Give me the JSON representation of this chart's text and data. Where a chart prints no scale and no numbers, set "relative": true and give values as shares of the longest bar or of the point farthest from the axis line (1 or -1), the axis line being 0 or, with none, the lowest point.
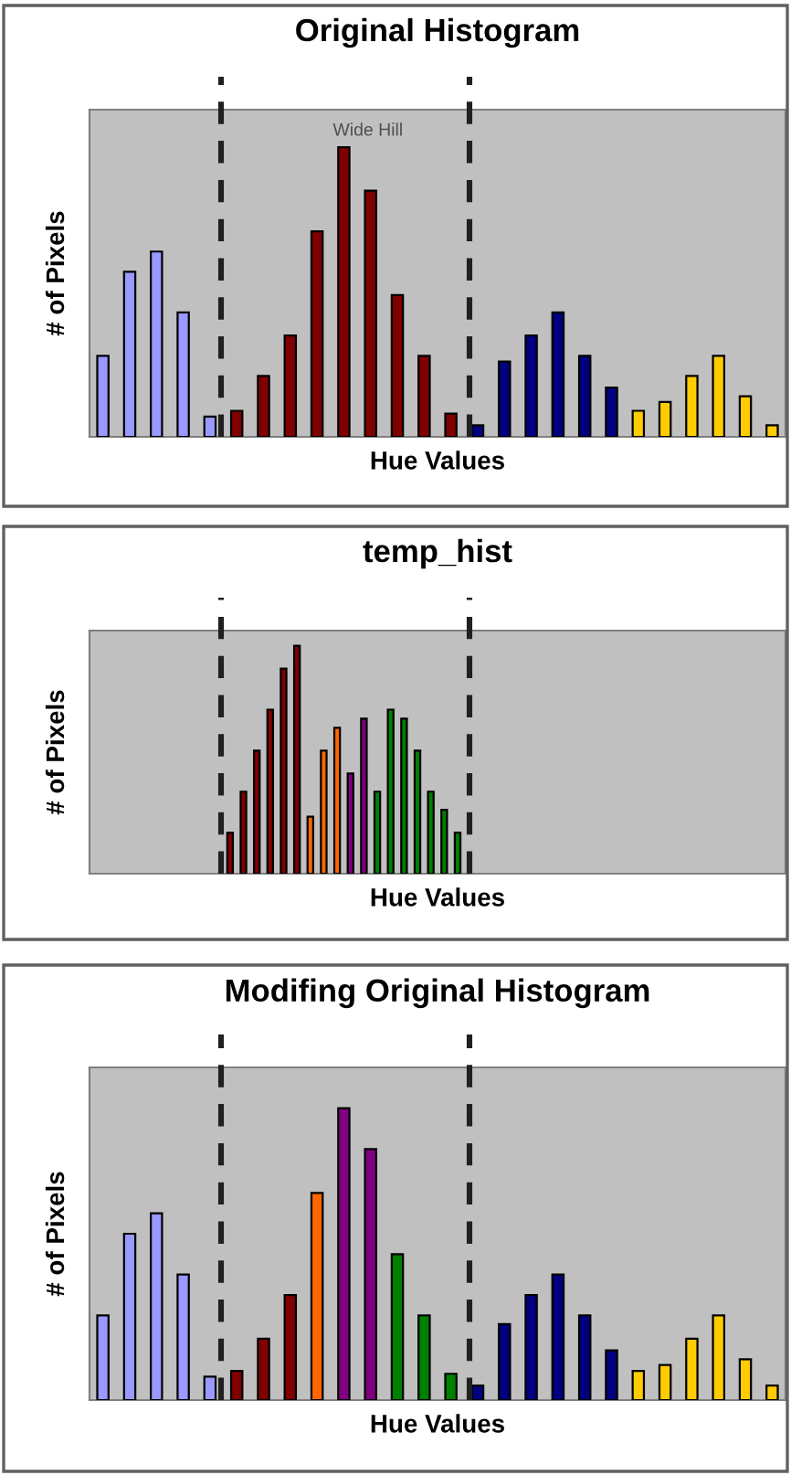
{
  "chart_data": [
    {
      "type": "bar",
      "title": "Original Histogram",
      "xlabel": "Hue Values",
      "ylabel": "# of Pixels",
      "relative": true,
      "categories": [
        null,
        null,
        null,
        null,
        null,
        null,
        null,
        null,
        null,
        null,
        null,
        null,
        null,
        null,
        null,
        null,
        null,
        null,
        null,
        null,
        null,
        null,
        null,
        null,
        null,
        null
      ],
      "values": [
        0.28,
        0.57,
        0.64,
        0.43,
        0.07,
        0.09,
        0.21,
        0.35,
        0.71,
        1.0,
        0.85,
        0.49,
        0.28,
        0.08,
        0.04,
        0.26,
        0.35,
        0.43,
        0.28,
        0.17,
        0.09,
        0.12,
        0.21,
        0.28,
        0.14,
        0.04
      ],
      "colors": [
        "#9999ff",
        "#9999ff",
        "#9999ff",
        "#9999ff",
        "#9999ff",
        "#800000",
        "#800000",
        "#800000",
        "#800000",
        "#800000",
        "#800000",
        "#800000",
        "#800000",
        "#800000",
        "#000080",
        "#000080",
        "#000080",
        "#000080",
        "#000080",
        "#000080",
        "#ffcc00",
        "#ffcc00",
        "#ffcc00",
        "#ffcc00",
        "#ffcc00",
        "#ffcc00"
      ],
      "annotations": [
        "Wide Hill"
      ]
    },
    {
      "type": "bar",
      "title": "temp_hist",
      "xlabel": "Hue Values",
      "ylabel": "# of Pixels",
      "relative": true,
      "categories": [
        null,
        null,
        null,
        null,
        null,
        null,
        null,
        null,
        null,
        null,
        null,
        null,
        null,
        null,
        null,
        null,
        null,
        null
      ],
      "values": [
        0.18,
        0.36,
        0.54,
        0.72,
        0.9,
        1.0,
        0.25,
        0.54,
        0.64,
        0.44,
        0.68,
        0.36,
        0.72,
        0.68,
        0.54,
        0.36,
        0.28,
        0.18
      ],
      "colors": [
        "#800000",
        "#800000",
        "#800000",
        "#800000",
        "#800000",
        "#800000",
        "#ff6600",
        "#ff6600",
        "#ff6600",
        "#800080",
        "#800080",
        "#008000",
        "#008000",
        "#008000",
        "#008000",
        "#008000",
        "#008000",
        "#008000"
      ]
    },
    {
      "type": "bar",
      "title": "Modifing Original Histogram",
      "xlabel": "Hue Values",
      "ylabel": "# of Pixels",
      "relative": true,
      "categories": [
        null,
        null,
        null,
        null,
        null,
        null,
        null,
        null,
        null,
        null,
        null,
        null,
        null,
        null,
        null,
        null,
        null,
        null,
        null,
        null,
        null,
        null,
        null,
        null,
        null,
        null
      ],
      "values": [
        0.29,
        0.57,
        0.64,
        0.43,
        0.08,
        0.1,
        0.21,
        0.36,
        0.71,
        1.0,
        0.86,
        0.5,
        0.29,
        0.09,
        0.05,
        0.26,
        0.36,
        0.43,
        0.29,
        0.17,
        0.1,
        0.12,
        0.21,
        0.29,
        0.14,
        0.05
      ],
      "colors": [
        "#9999ff",
        "#9999ff",
        "#9999ff",
        "#9999ff",
        "#9999ff",
        "#800000",
        "#800000",
        "#800000",
        "#ff6600",
        "#800080",
        "#800080",
        "#008000",
        "#008000",
        "#008000",
        "#000080",
        "#000080",
        "#000080",
        "#000080",
        "#000080",
        "#000080",
        "#ffcc00",
        "#ffcc00",
        "#ffcc00",
        "#ffcc00",
        "#ffcc00",
        "#ffcc00"
      ]
    }
  ]
}
